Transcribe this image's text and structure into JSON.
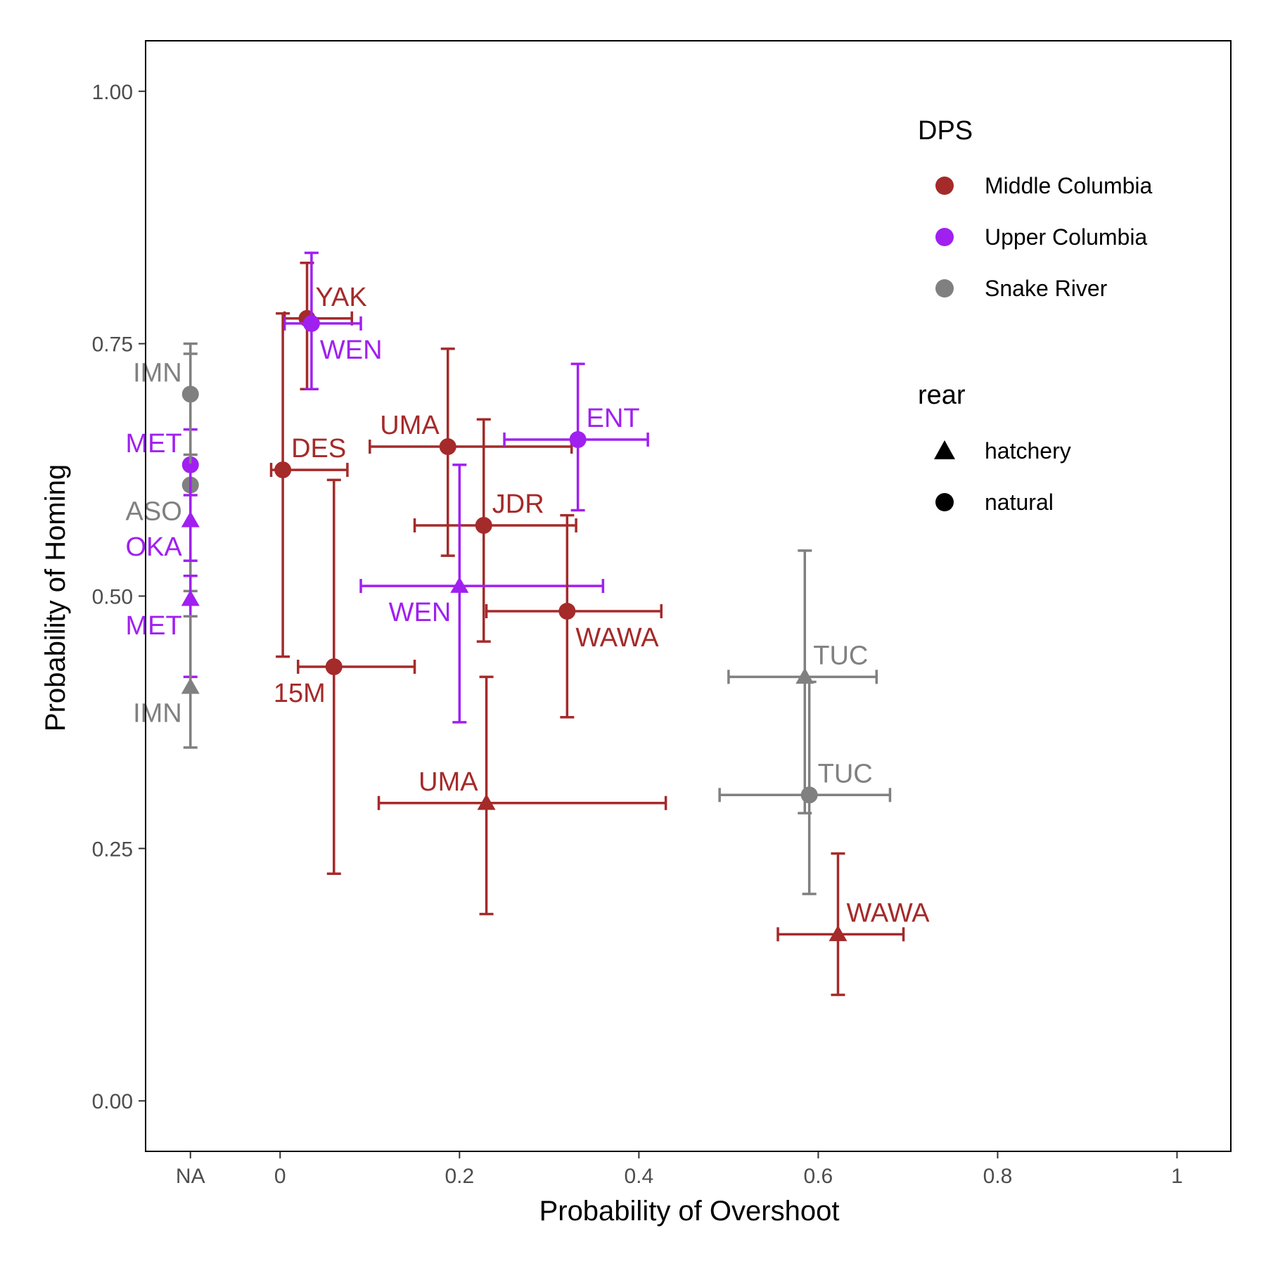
{
  "chart_data": {
    "type": "scatter",
    "xlabel": "Probability of Overshoot",
    "ylabel": "Probability of Homing",
    "xlim": [
      -0.15,
      1.06
    ],
    "ylim": [
      -0.05,
      1.05
    ],
    "x_ticks": [
      {
        "label": "NA",
        "value": -0.1
      },
      {
        "label": "0",
        "value": 0
      },
      {
        "label": "0.2",
        "value": 0.2
      },
      {
        "label": "0.4",
        "value": 0.4
      },
      {
        "label": "0.6",
        "value": 0.6
      },
      {
        "label": "0.8",
        "value": 0.8
      },
      {
        "label": "1",
        "value": 1.0
      }
    ],
    "y_ticks": [
      {
        "label": "0.00",
        "value": 0.0
      },
      {
        "label": "0.25",
        "value": 0.25
      },
      {
        "label": "0.50",
        "value": 0.5
      },
      {
        "label": "0.75",
        "value": 0.75
      },
      {
        "label": "1.00",
        "value": 1.0
      }
    ],
    "grid": false,
    "legend": {
      "placement": "top-right",
      "dps_title": "DPS",
      "dps_entries": [
        {
          "name": "Middle Columbia",
          "color": "#a52a2a"
        },
        {
          "name": "Upper Columbia",
          "color": "#a020f0"
        },
        {
          "name": "Snake River",
          "color": "#808080"
        }
      ],
      "rear_title": "rear",
      "rear_entries": [
        {
          "name": "hatchery",
          "shape": "triangle"
        },
        {
          "name": "natural",
          "shape": "circle"
        }
      ]
    },
    "points": [
      {
        "label": "YAK",
        "dps": "Middle Columbia",
        "rear": "natural",
        "x": 0.03,
        "xmin": 0.005,
        "xmax": 0.08,
        "y": 0.775,
        "ymin": 0.705,
        "ymax": 0.83,
        "label_pos": "upper-right"
      },
      {
        "label": "WEN",
        "dps": "Upper Columbia",
        "rear": "natural",
        "x": 0.035,
        "xmin": 0.005,
        "xmax": 0.09,
        "y": 0.77,
        "ymin": 0.705,
        "ymax": 0.84,
        "label_pos": "lower-right"
      },
      {
        "label": "DES",
        "dps": "Middle Columbia",
        "rear": "natural",
        "x": 0.003,
        "xmin": -0.01,
        "xmax": 0.075,
        "y": 0.625,
        "ymin": 0.44,
        "ymax": 0.78,
        "label_pos": "upper-right"
      },
      {
        "label": "UMA",
        "dps": "Middle Columbia",
        "rear": "natural",
        "x": 0.187,
        "xmin": 0.1,
        "xmax": 0.325,
        "y": 0.648,
        "ymin": 0.54,
        "ymax": 0.745,
        "label_pos": "upper-left"
      },
      {
        "label": "ENT",
        "dps": "Upper Columbia",
        "rear": "natural",
        "x": 0.332,
        "xmin": 0.25,
        "xmax": 0.41,
        "y": 0.655,
        "ymin": 0.585,
        "ymax": 0.73,
        "label_pos": "upper-right"
      },
      {
        "label": "JDR",
        "dps": "Middle Columbia",
        "rear": "natural",
        "x": 0.227,
        "xmin": 0.15,
        "xmax": 0.33,
        "y": 0.57,
        "ymin": 0.455,
        "ymax": 0.675,
        "label_pos": "upper-right"
      },
      {
        "label": "WEN",
        "dps": "Upper Columbia",
        "rear": "hatchery",
        "x": 0.2,
        "xmin": 0.09,
        "xmax": 0.36,
        "y": 0.51,
        "ymin": 0.375,
        "ymax": 0.63,
        "label_pos": "lower-left"
      },
      {
        "label": "WAWA",
        "dps": "Middle Columbia",
        "rear": "natural",
        "x": 0.32,
        "xmin": 0.23,
        "xmax": 0.425,
        "y": 0.485,
        "ymin": 0.38,
        "ymax": 0.58,
        "label_pos": "lower-right"
      },
      {
        "label": "15M",
        "dps": "Middle Columbia",
        "rear": "natural",
        "x": 0.06,
        "xmin": 0.02,
        "xmax": 0.15,
        "y": 0.43,
        "ymin": 0.225,
        "ymax": 0.615,
        "label_pos": "lower-left"
      },
      {
        "label": "UMA",
        "dps": "Middle Columbia",
        "rear": "hatchery",
        "x": 0.23,
        "xmin": 0.11,
        "xmax": 0.43,
        "y": 0.295,
        "ymin": 0.185,
        "ymax": 0.42,
        "label_pos": "upper-left"
      },
      {
        "label": "TUC",
        "dps": "Snake River",
        "rear": "hatchery",
        "x": 0.585,
        "xmin": 0.5,
        "xmax": 0.665,
        "y": 0.42,
        "ymin": 0.285,
        "ymax": 0.545,
        "label_pos": "upper-right"
      },
      {
        "label": "TUC",
        "dps": "Snake River",
        "rear": "natural",
        "x": 0.59,
        "xmin": 0.49,
        "xmax": 0.68,
        "y": 0.303,
        "ymin": 0.205,
        "ymax": 0.415,
        "label_pos": "upper-right"
      },
      {
        "label": "WAWA",
        "dps": "Middle Columbia",
        "rear": "hatchery",
        "x": 0.622,
        "xmin": 0.555,
        "xmax": 0.695,
        "y": 0.165,
        "ymin": 0.105,
        "ymax": 0.245,
        "label_pos": "upper-right"
      },
      {
        "label": "IMN",
        "dps": "Snake River",
        "rear": "natural",
        "x": null,
        "y": 0.7,
        "ymin": 0.64,
        "ymax": 0.75,
        "label_pos": "upper-left"
      },
      {
        "label": "MET",
        "dps": "Upper Columbia",
        "rear": "natural",
        "x": null,
        "y": 0.63,
        "ymin": 0.6,
        "ymax": 0.665,
        "label_pos": "upper-left"
      },
      {
        "label": "ASO",
        "dps": "Snake River",
        "rear": "natural",
        "x": null,
        "y": 0.61,
        "ymin": 0.505,
        "ymax": 0.74,
        "label_pos": "lower-left"
      },
      {
        "label": "OKA",
        "dps": "Upper Columbia",
        "rear": "hatchery",
        "x": null,
        "y": 0.575,
        "ymin": 0.535,
        "ymax": 0.63,
        "label_pos": "lower-left"
      },
      {
        "label": "MET",
        "dps": "Upper Columbia",
        "rear": "hatchery",
        "x": null,
        "y": 0.497,
        "ymin": 0.42,
        "ymax": 0.52,
        "label_pos": "lower-left"
      },
      {
        "label": "IMN",
        "dps": "Snake River",
        "rear": "hatchery",
        "x": null,
        "y": 0.41,
        "ymin": 0.35,
        "ymax": 0.48,
        "label_pos": "lower-left"
      }
    ]
  }
}
